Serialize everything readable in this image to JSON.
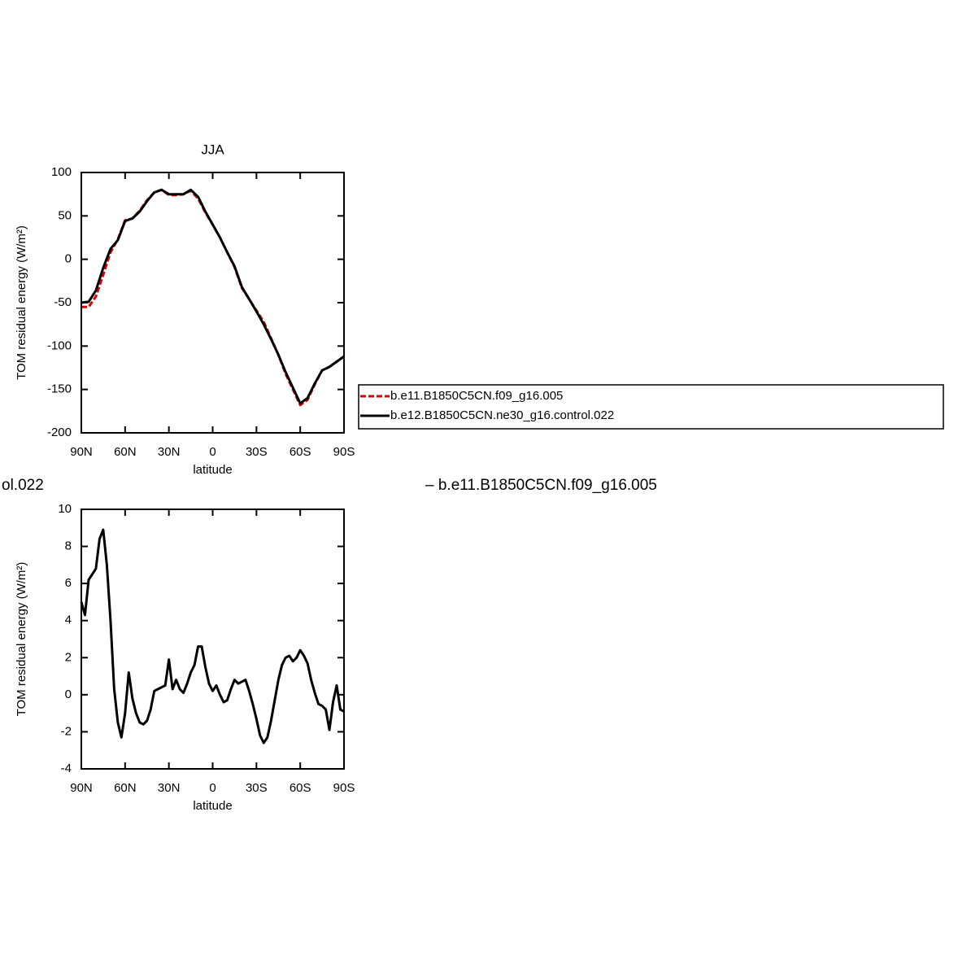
{
  "chart_data": [
    {
      "type": "line",
      "title": "JJA",
      "xlabel": "latitude",
      "ylabel": "TOM residual energy (W/m²)",
      "x": [
        90,
        85,
        80,
        75,
        70,
        65,
        60,
        55,
        50,
        45,
        40,
        35,
        30,
        25,
        20,
        15,
        10,
        5,
        0,
        -5,
        -10,
        -15,
        -20,
        -25,
        -30,
        -35,
        -40,
        -45,
        -50,
        -55,
        -60,
        -65,
        -70,
        -75,
        -80,
        -85,
        -90
      ],
      "series": [
        {
          "name": "b.e11.B1850C5CN.f09_g16.005",
          "color": "#e00000",
          "dash": true,
          "values": [
            -55,
            -55,
            -43,
            -18,
            8,
            23,
            45,
            47,
            56,
            68,
            77,
            80,
            74,
            74,
            75,
            79,
            70,
            54,
            40,
            25,
            8,
            -9,
            -33,
            -46,
            -59,
            -72,
            -91,
            -110,
            -132,
            -150,
            -168,
            -162,
            -144,
            -128,
            -124,
            -118,
            -112
          ]
        },
        {
          "name": "b.e12.B1850C5CN.ne30_g16.control.022",
          "color": "#000000",
          "dash": false,
          "values": [
            -50,
            -49,
            -36,
            -10,
            12,
            22,
            44,
            47,
            55,
            67,
            77,
            80,
            75,
            75,
            75,
            80,
            72,
            55,
            40,
            25,
            8,
            -8,
            -32,
            -46,
            -60,
            -75,
            -92,
            -110,
            -130,
            -148,
            -166,
            -160,
            -143,
            -128,
            -124,
            -118,
            -112
          ]
        }
      ],
      "xlim": [
        90,
        -90
      ],
      "xticks": [
        {
          "value": 90,
          "label": "90N"
        },
        {
          "value": 60,
          "label": "60N"
        },
        {
          "value": 30,
          "label": "30N"
        },
        0,
        {
          "value": -30,
          "label": "30S"
        },
        {
          "value": -60,
          "label": "60S"
        },
        {
          "value": -90,
          "label": "90S"
        }
      ],
      "ylim": [
        -200,
        100
      ],
      "yticks": [
        -200,
        -150,
        -100,
        -50,
        0,
        50,
        100
      ],
      "legend": "right"
    },
    {
      "type": "line",
      "title_left": "ol.022",
      "title": "– b.e11.B1850C5CN.f09_g16.005",
      "xlabel": "latitude",
      "ylabel": "TOM residual energy (W/m²)",
      "x": [
        90,
        87.5,
        85,
        82.5,
        80,
        77.5,
        75,
        72.5,
        70,
        67.5,
        65,
        62.5,
        60,
        57.5,
        55,
        52.5,
        50,
        47.5,
        45,
        42.5,
        40,
        37.5,
        35,
        32.5,
        30,
        27.5,
        25,
        22.5,
        20,
        17.5,
        15,
        12.5,
        10,
        7.5,
        5,
        2.5,
        0,
        -2.5,
        -5,
        -7.5,
        -10,
        -12.5,
        -15,
        -17.5,
        -20,
        -22.5,
        -25,
        -27.5,
        -30,
        -32.5,
        -35,
        -37.5,
        -40,
        -42.5,
        -45,
        -47.5,
        -50,
        -52.5,
        -55,
        -57.5,
        -60,
        -62.5,
        -65,
        -67.5,
        -70,
        -72.5,
        -75,
        -77.5,
        -80,
        -82.5,
        -85,
        -87.5,
        -90
      ],
      "series": [
        {
          "color": "#000000",
          "dash": false,
          "values": [
            5.0,
            4.3,
            6.2,
            6.5,
            6.8,
            8.4,
            8.9,
            7,
            4,
            0.3,
            -1.5,
            -2.3,
            -1,
            1.2,
            -0.2,
            -1.0,
            -1.5,
            -1.6,
            -1.4,
            -0.8,
            0.2,
            0.3,
            0.4,
            0.5,
            1.9,
            0.3,
            0.8,
            0.3,
            0.1,
            0.6,
            1.2,
            1.6,
            2.6,
            2.6,
            1.5,
            0.6,
            0.2,
            0.5,
            0.0,
            -0.4,
            -0.3,
            0.3,
            0.8,
            0.6,
            0.7,
            0.8,
            0.2,
            -0.5,
            -1.3,
            -2.2,
            -2.6,
            -2.3,
            -1.4,
            -0.3,
            0.8,
            1.6,
            2.0,
            2.1,
            1.8,
            2.0,
            2.4,
            2.1,
            1.7,
            0.8,
            0.1,
            -0.5,
            -0.6,
            -0.8,
            -1.9,
            -0.4,
            0.5,
            -0.8,
            -0.9
          ]
        }
      ],
      "xlim": [
        90,
        -90
      ],
      "xticks": [
        {
          "value": 90,
          "label": "90N"
        },
        {
          "value": 60,
          "label": "60N"
        },
        {
          "value": 30,
          "label": "30N"
        },
        0,
        {
          "value": -30,
          "label": "30S"
        },
        {
          "value": -60,
          "label": "60S"
        },
        {
          "value": -90,
          "label": "90S"
        }
      ],
      "ylim": [
        -4,
        10
      ],
      "yticks": [
        -4,
        -2,
        0,
        2,
        4,
        6,
        8,
        10
      ]
    }
  ]
}
